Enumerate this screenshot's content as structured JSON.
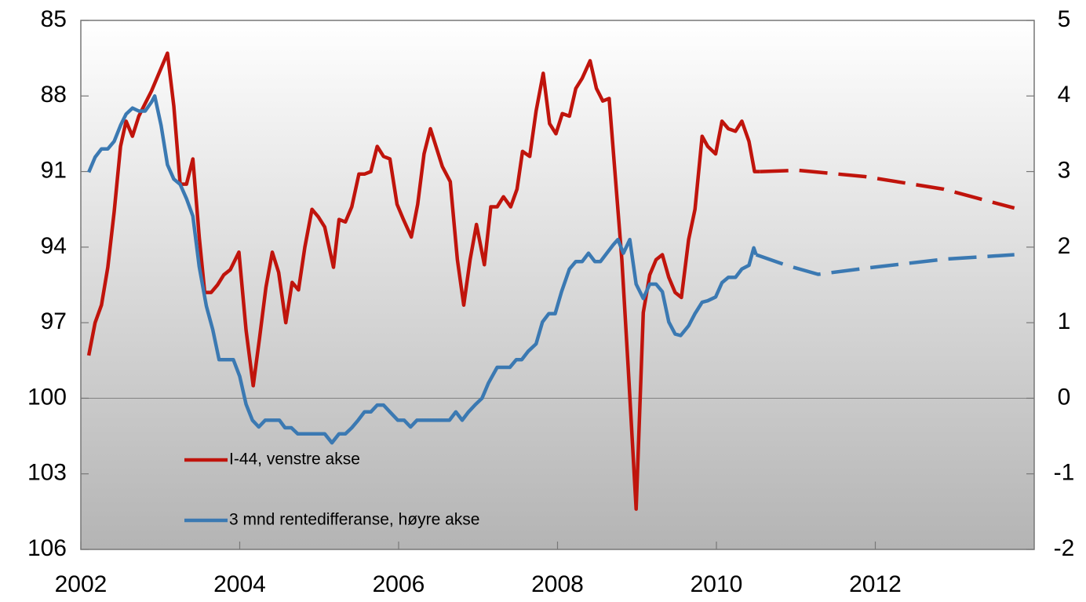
{
  "chart_data": {
    "type": "line",
    "xlim": [
      2002,
      2014
    ],
    "xticks": [
      2002,
      2004,
      2006,
      2008,
      2010,
      2012
    ],
    "ylim": [
      85,
      106
    ],
    "y_inverted": true,
    "yticks": [
      85,
      88,
      91,
      94,
      97,
      100,
      103,
      106
    ],
    "y2lim": [
      -2,
      5
    ],
    "y2ticks": [
      -2,
      -1,
      0,
      1,
      2,
      3,
      4,
      5
    ],
    "legend": "lower-left",
    "series": [
      {
        "name": "I-44, venstre akse",
        "color": "#c0140c",
        "axis": "y",
        "x": [
          2002.1,
          2002.18,
          2002.26,
          2002.34,
          2002.42,
          2002.5,
          2002.57,
          2002.65,
          2002.73,
          2002.81,
          2002.89,
          2002.97,
          2003.09,
          2003.17,
          2003.25,
          2003.33,
          2003.41,
          2003.49,
          2003.56,
          2003.64,
          2003.72,
          2003.8,
          2003.88,
          2003.99,
          2004.08,
          2004.17,
          2004.25,
          2004.33,
          2004.41,
          2004.49,
          2004.58,
          2004.66,
          2004.74,
          2004.82,
          2004.91,
          2004.99,
          2005.07,
          2005.18,
          2005.25,
          2005.33,
          2005.41,
          2005.5,
          2005.57,
          2005.65,
          2005.73,
          2005.81,
          2005.89,
          2005.98,
          2006.06,
          2006.16,
          2006.24,
          2006.32,
          2006.4,
          2006.48,
          2006.55,
          2006.65,
          2006.74,
          2006.82,
          2006.9,
          2006.98,
          2007.08,
          2007.16,
          2007.24,
          2007.32,
          2007.41,
          2007.49,
          2007.56,
          2007.65,
          2007.73,
          2007.82,
          2007.9,
          2007.98,
          2008.06,
          2008.15,
          2008.23,
          2008.31,
          2008.41,
          2008.49,
          2008.57,
          2008.65,
          2008.81,
          2008.89,
          2008.99,
          2009.08,
          2009.16,
          2009.24,
          2009.32,
          2009.4,
          2009.48,
          2009.56,
          2009.65,
          2009.73,
          2009.82,
          2009.89,
          2009.99,
          2010.07,
          2010.15,
          2010.24,
          2010.32,
          2010.41,
          2010.48,
          2010.55
        ],
        "values": [
          98.3,
          97.0,
          96.3,
          94.8,
          92.6,
          90.0,
          89.0,
          89.6,
          88.8,
          88.3,
          87.8,
          87.2,
          86.3,
          88.4,
          91.5,
          91.5,
          90.5,
          93.6,
          95.8,
          95.8,
          95.5,
          95.1,
          94.9,
          94.2,
          97.3,
          99.5,
          97.6,
          95.6,
          94.2,
          95.0,
          97.0,
          95.4,
          95.7,
          94.0,
          92.5,
          92.8,
          93.2,
          94.8,
          92.9,
          93.0,
          92.4,
          91.1,
          91.1,
          91.0,
          90.0,
          90.4,
          90.5,
          92.3,
          92.9,
          93.6,
          92.3,
          90.3,
          89.3,
          90.1,
          90.8,
          91.4,
          94.5,
          96.3,
          94.5,
          93.1,
          94.7,
          92.4,
          92.4,
          92.0,
          92.4,
          91.7,
          90.2,
          90.4,
          88.6,
          87.1,
          89.1,
          89.5,
          88.7,
          88.8,
          87.7,
          87.3,
          86.6,
          87.7,
          88.2,
          88.1,
          94.5,
          98.8,
          104.4,
          96.6,
          95.1,
          94.5,
          94.3,
          95.2,
          95.8,
          96.0,
          93.7,
          92.5,
          89.6,
          90.0,
          90.3,
          89.0,
          89.3,
          89.4,
          89.0,
          89.8,
          91.0,
          91.0
        ]
      },
      {
        "color": "#c0140c",
        "axis": "y",
        "dashed": true,
        "x": [
          2010.55,
          2011.03,
          2011.87,
          2012.86,
          2013.75
        ],
        "values": [
          91.0,
          90.95,
          91.2,
          91.7,
          92.45
        ]
      },
      {
        "name": "3 mnd rentedifferanse, høyre akse",
        "color": "#3b79b2",
        "axis": "y2",
        "x": [
          2002.1,
          2002.18,
          2002.26,
          2002.34,
          2002.42,
          2002.5,
          2002.57,
          2002.65,
          2002.73,
          2002.81,
          2002.89,
          2002.93,
          2003.01,
          2003.09,
          2003.17,
          2003.25,
          2003.33,
          2003.41,
          2003.49,
          2003.58,
          2003.66,
          2003.74,
          2003.82,
          2003.92,
          2004.0,
          2004.08,
          2004.16,
          2004.24,
          2004.32,
          2004.4,
          2004.5,
          2004.57,
          2004.65,
          2004.73,
          2004.81,
          2004.91,
          2004.99,
          2005.07,
          2005.16,
          2005.25,
          2005.33,
          2005.41,
          2005.49,
          2005.57,
          2005.65,
          2005.73,
          2005.81,
          2005.89,
          2005.99,
          2006.07,
          2006.15,
          2006.23,
          2006.31,
          2006.39,
          2006.49,
          2006.56,
          2006.64,
          2006.72,
          2006.8,
          2006.88,
          2006.97,
          2007.05,
          2007.13,
          2007.24,
          2007.32,
          2007.4,
          2007.48,
          2007.55,
          2007.63,
          2007.73,
          2007.81,
          2007.89,
          2007.97,
          2008.05,
          2008.15,
          2008.23,
          2008.31,
          2008.39,
          2008.47,
          2008.54,
          2008.62,
          2008.7,
          2008.76,
          2008.83,
          2008.91,
          2008.99,
          2009.08,
          2009.16,
          2009.24,
          2009.32,
          2009.4,
          2009.48,
          2009.55,
          2009.65,
          2009.73,
          2009.82,
          2009.89,
          2009.99,
          2010.07,
          2010.15,
          2010.24,
          2010.32,
          2010.41,
          2010.47,
          2010.5
        ],
        "values": [
          2.99,
          3.19,
          3.3,
          3.3,
          3.4,
          3.61,
          3.76,
          3.84,
          3.8,
          3.8,
          3.92,
          4.0,
          3.61,
          3.09,
          2.9,
          2.83,
          2.64,
          2.41,
          1.74,
          1.22,
          0.91,
          0.51,
          0.51,
          0.51,
          0.29,
          -0.08,
          -0.29,
          -0.38,
          -0.29,
          -0.29,
          -0.29,
          -0.39,
          -0.39,
          -0.47,
          -0.47,
          -0.47,
          -0.47,
          -0.47,
          -0.59,
          -0.47,
          -0.47,
          -0.39,
          -0.29,
          -0.18,
          -0.18,
          -0.09,
          -0.09,
          -0.18,
          -0.29,
          -0.29,
          -0.38,
          -0.29,
          -0.29,
          -0.29,
          -0.29,
          -0.29,
          -0.29,
          -0.18,
          -0.29,
          -0.18,
          -0.08,
          0.0,
          0.2,
          0.41,
          0.41,
          0.41,
          0.51,
          0.51,
          0.62,
          0.72,
          1.01,
          1.12,
          1.12,
          1.41,
          1.71,
          1.81,
          1.81,
          1.92,
          1.81,
          1.81,
          1.92,
          2.03,
          2.1,
          1.92,
          2.1,
          1.51,
          1.32,
          1.51,
          1.51,
          1.41,
          1.01,
          0.85,
          0.83,
          0.96,
          1.12,
          1.27,
          1.29,
          1.34,
          1.53,
          1.6,
          1.6,
          1.71,
          1.76,
          1.99,
          1.9
        ]
      },
      {
        "color": "#3b79b2",
        "axis": "y2",
        "dashed": true,
        "x": [
          2010.5,
          2010.88,
          2011.28,
          2011.87,
          2012.86,
          2013.75
        ],
        "values": [
          1.9,
          1.76,
          1.64,
          1.72,
          1.84,
          1.9
        ]
      }
    ]
  }
}
